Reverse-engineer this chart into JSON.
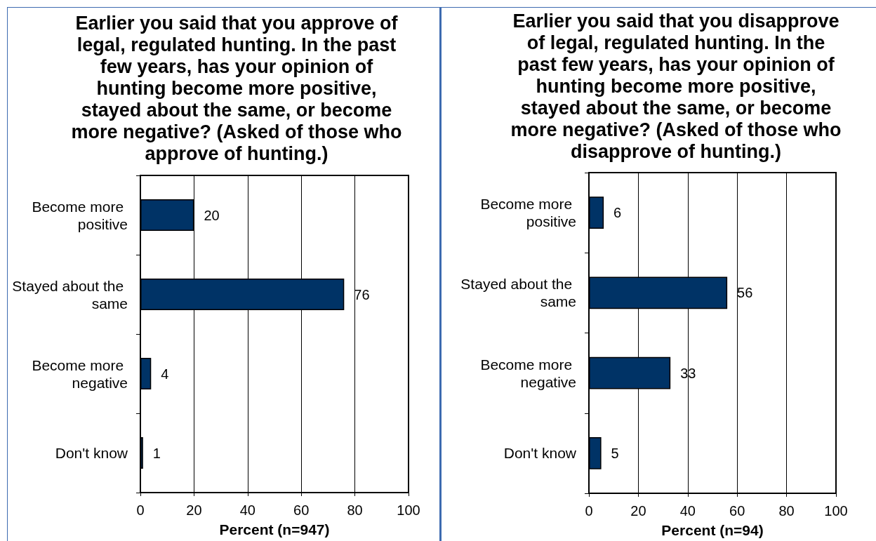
{
  "chart_data": [
    {
      "type": "bar",
      "orientation": "horizontal",
      "title": "Earlier you said that you approve of legal, regulated hunting. In the past few years, has your opinion of hunting become more positive, stayed about the same, or become more negative? (Asked of those who approve of hunting.)",
      "xlabel": "Percent (n=947)",
      "categories": [
        "Become more positive",
        "Stayed about the same",
        "Become more negative",
        "Don't know"
      ],
      "values": [
        20,
        76,
        4,
        1
      ],
      "color": "#003366",
      "xlim": [
        0,
        100
      ],
      "xticks": [
        0,
        20,
        40,
        60,
        80,
        100
      ],
      "grid": "x",
      "data_labels": true
    },
    {
      "type": "bar",
      "orientation": "horizontal",
      "title": "Earlier you said that you disapprove of legal, regulated hunting. In the past few years, has your opinion of hunting become more positive, stayed about the same, or become more negative? (Asked of those who disapprove of hunting.)",
      "xlabel": "Percent (n=94)",
      "categories": [
        "Become more positive",
        "Stayed about the same",
        "Become more negative",
        "Don't know"
      ],
      "values": [
        6,
        56,
        33,
        5
      ],
      "color": "#003366",
      "xlim": [
        0,
        100
      ],
      "xticks": [
        0,
        20,
        40,
        60,
        80,
        100
      ],
      "grid": "x",
      "data_labels": true
    }
  ]
}
